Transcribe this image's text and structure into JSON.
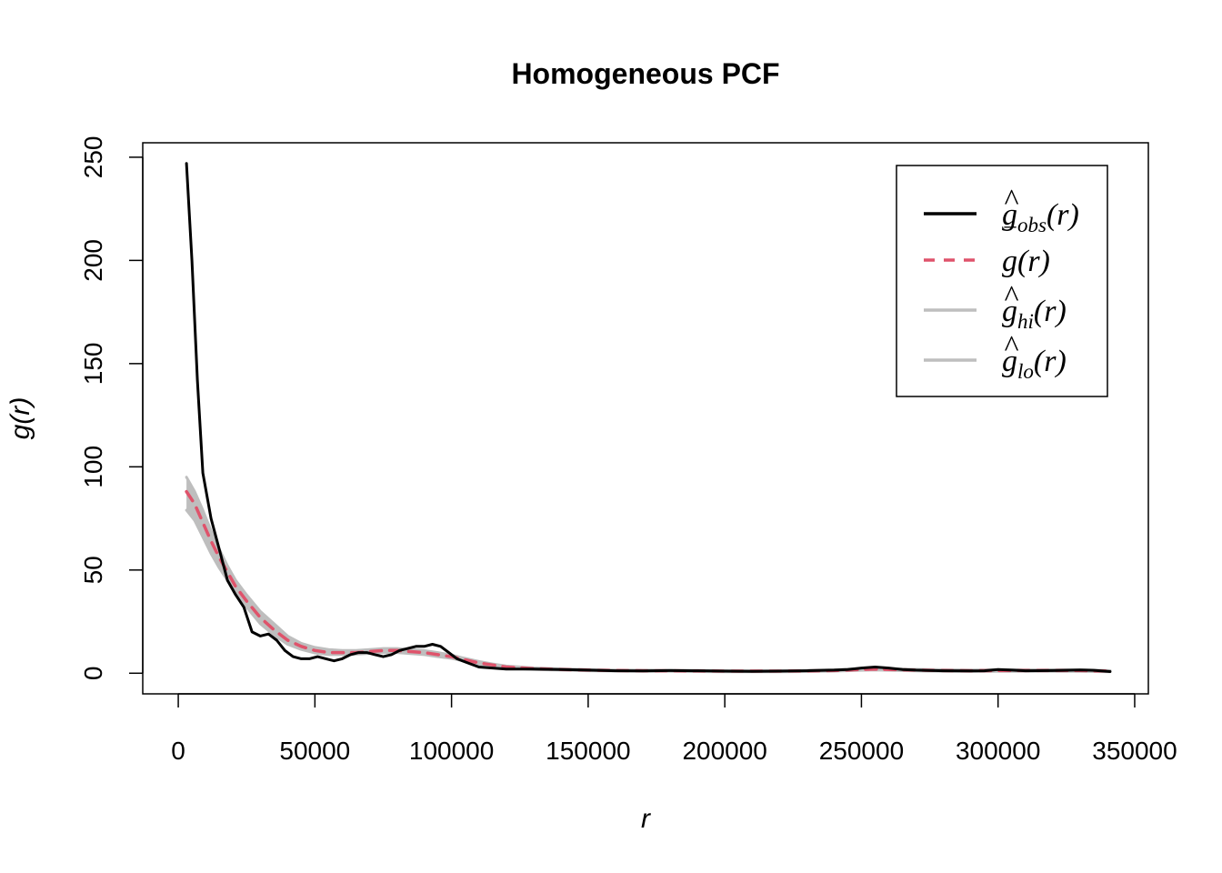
{
  "chart_data": {
    "type": "line",
    "title": "Homogeneous PCF",
    "xlabel": "r",
    "ylabel": "g(r)",
    "xlim": [
      -13000,
      355000
    ],
    "ylim": [
      -10,
      257
    ],
    "xticks": [
      0,
      50000,
      100000,
      150000,
      200000,
      250000,
      300000,
      350000
    ],
    "xtick_labels": [
      "0",
      "50000",
      "100000",
      "150000",
      "200000",
      "250000",
      "300000",
      "350000"
    ],
    "yticks": [
      0,
      50,
      100,
      150,
      200,
      250
    ],
    "ytick_labels": [
      "0",
      "50",
      "100",
      "150",
      "200",
      "250"
    ],
    "grid": false,
    "legend_position": "top-right",
    "legend": [
      {
        "key": "obs",
        "text": "g",
        "hat": "^",
        "sub": "obs",
        "suffix": "(r)",
        "color": "#000000",
        "dash": "solid"
      },
      {
        "key": "theo",
        "text": "g",
        "hat": "‾",
        "sub": "",
        "suffix": "(r)",
        "color": "#DF536B",
        "dash": "dashed"
      },
      {
        "key": "hi",
        "text": "g",
        "hat": "^",
        "sub": "hi",
        "suffix": "(r)",
        "color": "#BEBEBE",
        "dash": "solid"
      },
      {
        "key": "lo",
        "text": "g",
        "hat": "^",
        "sub": "lo",
        "suffix": "(r)",
        "color": "#BEBEBE",
        "dash": "solid"
      }
    ],
    "series": [
      {
        "name": "obs",
        "color": "#000000",
        "x": [
          3000,
          5000,
          7000,
          9000,
          12000,
          15000,
          18000,
          21000,
          24000,
          27000,
          30000,
          33000,
          36000,
          39000,
          42000,
          45000,
          48000,
          51000,
          54000,
          57000,
          60000,
          63000,
          66000,
          69000,
          72000,
          75000,
          78000,
          81000,
          84000,
          87000,
          90000,
          93000,
          96000,
          99000,
          102000,
          106000,
          110000,
          115000,
          120000,
          130000,
          140000,
          150000,
          160000,
          170000,
          180000,
          190000,
          200000,
          210000,
          220000,
          230000,
          240000,
          245000,
          250000,
          255000,
          260000,
          265000,
          270000,
          280000,
          290000,
          295000,
          300000,
          305000,
          310000,
          320000,
          330000,
          335000,
          341000
        ],
        "y": [
          247,
          200,
          142,
          97,
          75,
          60,
          45,
          38,
          32,
          20,
          18,
          19,
          16,
          11,
          8,
          7,
          7,
          8,
          7,
          6,
          7,
          9,
          10,
          10,
          9,
          8,
          9,
          11,
          12,
          13,
          13,
          14,
          13,
          10,
          7,
          5,
          3,
          2.5,
          2,
          2,
          1.8,
          1.5,
          1.2,
          1.1,
          1.3,
          1.2,
          1,
          0.9,
          1,
          1.2,
          1.5,
          1.8,
          2.5,
          3,
          2.5,
          1.8,
          1.5,
          1.2,
          1.1,
          1.2,
          1.8,
          1.5,
          1.2,
          1.3,
          1.6,
          1.4,
          0.8
        ]
      },
      {
        "name": "theo",
        "color": "#DF536B",
        "x": [
          3000,
          6000,
          9000,
          12000,
          15000,
          18000,
          21000,
          25000,
          30000,
          35000,
          40000,
          45000,
          50000,
          55000,
          60000,
          65000,
          70000,
          75000,
          80000,
          85000,
          90000,
          95000,
          100000,
          105000,
          110000,
          115000,
          120000,
          130000,
          140000,
          150000,
          160000,
          170000,
          180000,
          190000,
          200000,
          210000,
          220000,
          230000,
          240000,
          250000,
          255000,
          260000,
          270000,
          280000,
          290000,
          300000,
          310000,
          320000,
          330000,
          341000
        ],
        "y": [
          88,
          82,
          73,
          64,
          56,
          49,
          42,
          35,
          27,
          21,
          16,
          13,
          11,
          10,
          10,
          10,
          10.5,
          11,
          11,
          10.5,
          10,
          9,
          8,
          6.5,
          5,
          4,
          3,
          2.2,
          1.8,
          1.5,
          1.3,
          1.2,
          1.2,
          1.1,
          1,
          1,
          1,
          1.1,
          1.3,
          1.8,
          2,
          1.8,
          1.5,
          1.3,
          1.2,
          1.3,
          1.3,
          1.3,
          1.3,
          1
        ]
      },
      {
        "name": "hi",
        "color": "#BEBEBE",
        "x": [
          3000,
          6000,
          9000,
          12000,
          15000,
          18000,
          21000,
          25000,
          30000,
          35000,
          40000,
          45000,
          50000,
          55000,
          60000,
          65000,
          70000,
          75000,
          80000,
          85000,
          90000,
          95000,
          100000,
          105000,
          110000,
          115000,
          120000,
          130000,
          140000,
          150000,
          160000,
          170000,
          180000,
          190000,
          200000,
          210000,
          220000,
          230000,
          240000,
          250000,
          255000,
          260000,
          270000,
          280000,
          290000,
          300000,
          310000,
          320000,
          330000,
          341000
        ],
        "y": [
          95,
          88,
          79,
          69,
          60,
          52,
          45,
          38,
          30,
          24,
          18,
          14.5,
          12.5,
          11.5,
          11,
          11,
          11.5,
          12,
          12,
          11.5,
          11,
          10,
          8.8,
          7.2,
          5.7,
          4.5,
          3.5,
          2.6,
          2.1,
          1.8,
          1.6,
          1.5,
          1.5,
          1.4,
          1.3,
          1.3,
          1.3,
          1.4,
          1.7,
          2.2,
          2.5,
          2.2,
          1.9,
          1.7,
          1.6,
          1.7,
          1.7,
          1.7,
          1.7,
          1.3
        ]
      },
      {
        "name": "lo",
        "color": "#BEBEBE",
        "x": [
          3000,
          6000,
          9000,
          12000,
          15000,
          18000,
          21000,
          25000,
          30000,
          35000,
          40000,
          45000,
          50000,
          55000,
          60000,
          65000,
          70000,
          75000,
          80000,
          85000,
          90000,
          95000,
          100000,
          105000,
          110000,
          115000,
          120000,
          130000,
          140000,
          150000,
          160000,
          170000,
          180000,
          190000,
          200000,
          210000,
          220000,
          230000,
          240000,
          250000,
          255000,
          260000,
          270000,
          280000,
          290000,
          300000,
          310000,
          320000,
          330000,
          341000
        ],
        "y": [
          79,
          74,
          66,
          58,
          51,
          45,
          39,
          32,
          24,
          18.5,
          14,
          11.5,
          9.8,
          9,
          9,
          9.2,
          9.6,
          10,
          10,
          9.5,
          9,
          8,
          7.2,
          5.8,
          4.3,
          3.5,
          2.6,
          1.8,
          1.5,
          1.2,
          1,
          0.9,
          0.9,
          0.8,
          0.7,
          0.7,
          0.7,
          0.8,
          1,
          1.4,
          1.6,
          1.4,
          1.1,
          0.9,
          0.8,
          0.9,
          0.9,
          0.9,
          0.9,
          0.7
        ]
      }
    ]
  }
}
